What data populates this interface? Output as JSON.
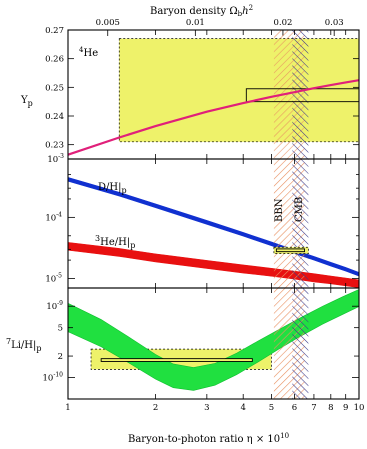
{
  "chart_data": [
    {
      "type": "line",
      "panel": "helium-4",
      "title": "Baryon density Ω_b h^2",
      "top_axis_title": "Baryon density",
      "top_axis_ticks": [
        "0.005",
        "0.01",
        "0.02",
        "0.03"
      ],
      "top_axis_tick_values": [
        0.005,
        0.01,
        0.02,
        0.03
      ],
      "ylabel": "Y_p",
      "element_label": "4He",
      "yscale": "linear",
      "ylim": [
        0.225,
        0.27
      ],
      "yticks": [
        "0.23",
        "0.24",
        "0.25",
        "0.26",
        "0.27"
      ],
      "series": [
        {
          "color": "#e0207a",
          "x": [
            1,
            1.5,
            2,
            3,
            4,
            5,
            6,
            7,
            8,
            9,
            10
          ],
          "y": [
            0.2265,
            0.2325,
            0.2365,
            0.2415,
            0.2445,
            0.2467,
            0.2483,
            0.2497,
            0.2508,
            0.2517,
            0.2525
          ],
          "width": [
            0.0004,
            0.0004,
            0.0004,
            0.0004,
            0.0004,
            0.0004,
            0.0004,
            0.0004,
            0.0004,
            0.0004,
            0.0004
          ]
        }
      ],
      "observation_box": {
        "x": [
          1.5,
          10
        ],
        "y": [
          0.231,
          0.267
        ],
        "color": "#eef26a"
      },
      "inner_box": {
        "x": [
          4.1,
          10
        ],
        "y": [
          0.245,
          0.2495
        ]
      }
    },
    {
      "type": "line",
      "panel": "deuterium-helium-3",
      "yscale": "log",
      "ylim": [
        7e-06,
        0.0009
      ],
      "yticks": [
        "10^-4",
        "10^-5"
      ],
      "series": [
        {
          "name": "D/H|p",
          "color": "#1030d0",
          "x": [
            1,
            1.5,
            2,
            3,
            4,
            5,
            6,
            7,
            8,
            9,
            10
          ],
          "y": [
            0.00042,
            0.00024,
            0.000155,
            8.3e-05,
            5.3e-05,
            3.7e-05,
            2.75e-05,
            2.15e-05,
            1.72e-05,
            1.42e-05,
            1.18e-05
          ],
          "width": [
            3e-05,
            1.7e-05,
            1.1e-05,
            6e-06,
            3.7e-06,
            2.6e-06,
            1.9e-06,
            1.5e-06,
            1.2e-06,
            1e-06,
            8e-07
          ]
        },
        {
          "name": "3He/H|p",
          "color": "#e81010",
          "x": [
            1,
            1.5,
            2,
            3,
            4,
            5,
            6,
            7,
            8,
            9,
            10
          ],
          "y": [
            3.4e-05,
            2.7e-05,
            2.2e-05,
            1.72e-05,
            1.45e-05,
            1.28e-05,
            1.15e-05,
            1.04e-05,
            9.6e-06,
            8.9e-06,
            8.3e-06
          ],
          "width": [
            5e-06,
            4e-06,
            3.3e-06,
            2.6e-06,
            2.2e-06,
            1.9e-06,
            1.7e-06,
            1.6e-06,
            1.4e-06,
            1.3e-06,
            1.2e-06
          ]
        }
      ],
      "observation_box": {
        "x": [
          5.1,
          6.7
        ],
        "y": [
          2.55e-05,
          3.25e-05
        ],
        "color": "#eef26a"
      },
      "inner_box": {
        "x": [
          5.2,
          6.5
        ],
        "y": [
          2.75e-05,
          3.05e-05
        ]
      }
    },
    {
      "type": "line",
      "panel": "lithium-7",
      "xlabel": "Baryon-to-photon ratio η × 10^10",
      "xlabel_main": "Baryon-to-photon ratio η × 10",
      "xlabel_exp": "10",
      "xscale": "log",
      "xlim": [
        1,
        10
      ],
      "xticks": [
        "1",
        "2",
        "3",
        "4",
        "5",
        "6",
        "7",
        "8",
        "9",
        "10"
      ],
      "xtick_values": [
        1,
        2,
        3,
        4,
        5,
        6,
        7,
        8,
        9,
        10
      ],
      "ylabel": "7Li/H|p",
      "yscale": "log",
      "ylim": [
        5e-11,
        1.8e-09
      ],
      "yticks": [
        "10^-9",
        "5",
        "2",
        "10^-10"
      ],
      "series": [
        {
          "color": "#20e040",
          "x": [
            1,
            1.3,
            1.6,
            2,
            2.3,
            2.7,
            3.2,
            3.8,
            4.5,
            5.3,
            6.3,
            7.5,
            8.8,
            10
          ],
          "y": [
            7e-10,
            4.2e-10,
            2.5e-10,
            1.4e-10,
            1.05e-10,
            9.5e-11,
            1.1e-10,
            1.55e-10,
            2.3e-10,
            3.4e-10,
            5.1e-10,
            7.5e-10,
            1.02e-09,
            1.3e-09
          ],
          "lo": [
            4.4e-10,
            2.7e-10,
            1.65e-10,
            9.5e-11,
            7.2e-11,
            6.6e-11,
            7.8e-11,
            1.1e-10,
            1.65e-10,
            2.5e-10,
            3.8e-10,
            5.6e-10,
            7.7e-10,
            9.9e-10
          ],
          "hi": [
            1.1e-09,
            6.5e-10,
            3.8e-10,
            2.1e-10,
            1.55e-10,
            1.38e-10,
            1.58e-10,
            2.2e-10,
            3.25e-10,
            4.7e-10,
            6.9e-10,
            1e-09,
            1.36e-09,
            1.72e-09
          ]
        }
      ],
      "observation_box": {
        "x": [
          1.2,
          5
        ],
        "y": [
          1.3e-10,
          2.5e-10
        ],
        "color": "#eef26a"
      },
      "inner_box": {
        "x": [
          1.3,
          4.3
        ],
        "y": [
          1.68e-10,
          1.84e-10
        ]
      }
    }
  ],
  "bands": [
    {
      "label": "BBN",
      "x": [
        5.1,
        6.5
      ],
      "color": "#e89060"
    },
    {
      "label": "CMB",
      "x": [
        5.9,
        6.7
      ],
      "color": "#3a3a8a"
    }
  ],
  "panel_texts": {
    "he_label": "He",
    "he_sup": "4",
    "yp_main": "Y",
    "yp_sub": "p",
    "dh_main": "D/H|",
    "dh_sub": "p",
    "he3_sup": "3",
    "he3_main": "He/H|",
    "he3_sub": "p",
    "li_sup": "7",
    "li_main": "Li/H|",
    "li_sub": "p",
    "omega_main": "Ω",
    "omega_sub": "b",
    "omega_h": "h",
    "omega_exp": "2",
    "exp_m3": "-3",
    "ytick_base_10": "10",
    "ytick_exp_m4": "-4",
    "ytick_exp_m5": "-5",
    "ytick_exp_m9": "-9",
    "ytick_exp_m10": "-10"
  }
}
